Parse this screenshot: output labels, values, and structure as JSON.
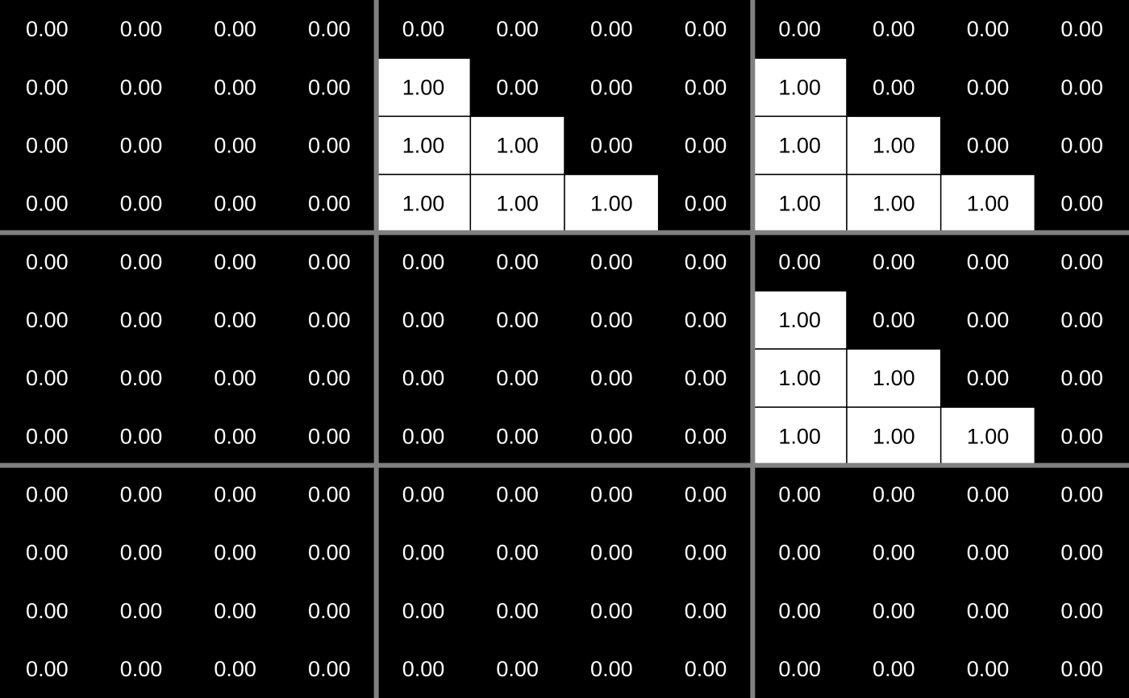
{
  "chart_data": {
    "type": "heatmap",
    "title": "",
    "xlabel": "",
    "ylabel": "",
    "value_format": "0.00",
    "colors": {
      "zero": "#000000",
      "one": "#ffffff",
      "text_on_zero": "#ffffff",
      "text_on_one": "#000000",
      "cell_border": "#000000",
      "block_separator": "#808080"
    },
    "block_grid": {
      "block_rows": 3,
      "block_cols": 3,
      "cells_per_block": 4
    },
    "values": [
      [
        "0.00",
        "0.00",
        "0.00",
        "0.00",
        "0.00",
        "0.00",
        "0.00",
        "0.00",
        "0.00",
        "0.00",
        "0.00",
        "0.00"
      ],
      [
        "0.00",
        "0.00",
        "0.00",
        "0.00",
        "1.00",
        "0.00",
        "0.00",
        "0.00",
        "1.00",
        "0.00",
        "0.00",
        "0.00"
      ],
      [
        "0.00",
        "0.00",
        "0.00",
        "0.00",
        "1.00",
        "1.00",
        "0.00",
        "0.00",
        "1.00",
        "1.00",
        "0.00",
        "0.00"
      ],
      [
        "0.00",
        "0.00",
        "0.00",
        "0.00",
        "1.00",
        "1.00",
        "1.00",
        "0.00",
        "1.00",
        "1.00",
        "1.00",
        "0.00"
      ],
      [
        "0.00",
        "0.00",
        "0.00",
        "0.00",
        "0.00",
        "0.00",
        "0.00",
        "0.00",
        "0.00",
        "0.00",
        "0.00",
        "0.00"
      ],
      [
        "0.00",
        "0.00",
        "0.00",
        "0.00",
        "0.00",
        "0.00",
        "0.00",
        "0.00",
        "1.00",
        "0.00",
        "0.00",
        "0.00"
      ],
      [
        "0.00",
        "0.00",
        "0.00",
        "0.00",
        "0.00",
        "0.00",
        "0.00",
        "0.00",
        "1.00",
        "1.00",
        "0.00",
        "0.00"
      ],
      [
        "0.00",
        "0.00",
        "0.00",
        "0.00",
        "0.00",
        "0.00",
        "0.00",
        "0.00",
        "1.00",
        "1.00",
        "1.00",
        "0.00"
      ],
      [
        "0.00",
        "0.00",
        "0.00",
        "0.00",
        "0.00",
        "0.00",
        "0.00",
        "0.00",
        "0.00",
        "0.00",
        "0.00",
        "0.00"
      ],
      [
        "0.00",
        "0.00",
        "0.00",
        "0.00",
        "0.00",
        "0.00",
        "0.00",
        "0.00",
        "0.00",
        "0.00",
        "0.00",
        "0.00"
      ],
      [
        "0.00",
        "0.00",
        "0.00",
        "0.00",
        "0.00",
        "0.00",
        "0.00",
        "0.00",
        "0.00",
        "0.00",
        "0.00",
        "0.00"
      ],
      [
        "0.00",
        "0.00",
        "0.00",
        "0.00",
        "0.00",
        "0.00",
        "0.00",
        "0.00",
        "0.00",
        "0.00",
        "0.00",
        "0.00"
      ]
    ]
  }
}
